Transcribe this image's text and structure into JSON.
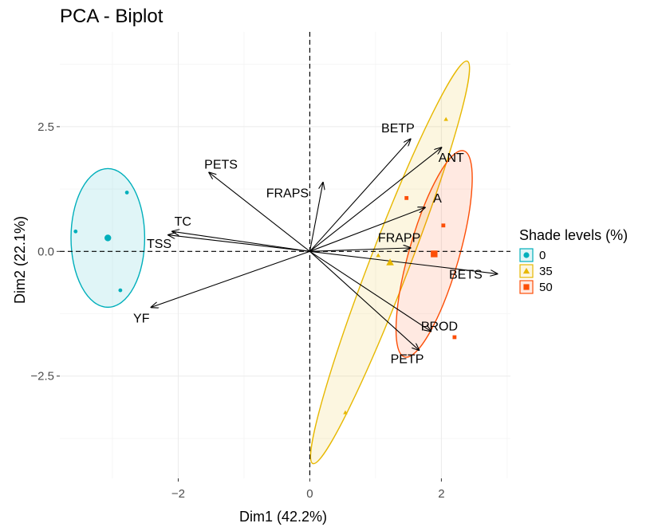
{
  "chart_data": {
    "type": "scatter",
    "title": "PCA - Biplot",
    "xlabel": "Dim1 (42.2%)",
    "ylabel": "Dim2 (22.1%)",
    "xlim": [
      -3.8,
      3.05
    ],
    "ylim": [
      -4.55,
      4.4
    ],
    "xticks": [
      -2,
      0,
      2
    ],
    "xtick_labels": [
      "−2",
      "0",
      "2"
    ],
    "yticks": [
      -2.5,
      0,
      2.5
    ],
    "ytick_labels": [
      "−2.5",
      "0.0",
      "2.5"
    ],
    "grid": true,
    "legend": {
      "title": "Shade levels (%)",
      "position": "right",
      "entries": [
        {
          "label": "0",
          "shape": "circle",
          "color": "#00AFBB"
        },
        {
          "label": "35",
          "shape": "triangle",
          "color": "#E7B800"
        },
        {
          "label": "50",
          "shape": "square",
          "color": "#FC4E07"
        }
      ]
    },
    "groups": [
      {
        "name": "0",
        "color": "#00AFBB",
        "shape": "circle",
        "points": [
          {
            "x": -2.78,
            "y": 1.18
          },
          {
            "x": -3.56,
            "y": 0.4
          },
          {
            "x": -2.88,
            "y": -0.78
          }
        ],
        "centroid": {
          "x": -3.07,
          "y": 0.27
        },
        "ellipse": {
          "cx": -3.07,
          "cy": 0.27,
          "rx": 0.56,
          "ry": 1.39,
          "angle_deg": 0
        }
      },
      {
        "name": "35",
        "color": "#E7B800",
        "shape": "triangle",
        "points": [
          {
            "x": 2.07,
            "y": 2.65
          },
          {
            "x": 1.04,
            "y": -0.08
          },
          {
            "x": 0.54,
            "y": -3.23
          }
        ],
        "centroid": {
          "x": 1.22,
          "y": -0.22
        },
        "ellipse": {
          "cx": 1.22,
          "cy": -0.22,
          "rx": 0.3,
          "ry": 4.32,
          "angle_deg": 21
        }
      },
      {
        "name": "50",
        "color": "#FC4E07",
        "shape": "square",
        "points": [
          {
            "x": 1.47,
            "y": 1.07
          },
          {
            "x": 2.03,
            "y": 0.52
          },
          {
            "x": 2.2,
            "y": -1.72
          }
        ],
        "centroid": {
          "x": 1.89,
          "y": -0.05
        },
        "ellipse": {
          "cx": 1.89,
          "cy": -0.05,
          "rx": 0.38,
          "ry": 2.15,
          "angle_deg": 16
        }
      }
    ],
    "variables": [
      {
        "name": "BETP",
        "x": 1.53,
        "y": 2.25,
        "lx": 1.34,
        "ly": 2.45
      },
      {
        "name": "ANT",
        "x": 2.0,
        "y": 2.08,
        "lx": 2.15,
        "ly": 1.86
      },
      {
        "name": "PETS",
        "x": -1.53,
        "y": 1.58,
        "lx": -1.35,
        "ly": 1.73
      },
      {
        "name": "FRAPS",
        "x": 0.2,
        "y": 1.38,
        "lx": -0.34,
        "ly": 1.15
      },
      {
        "name": "A",
        "x": 1.75,
        "y": 0.88,
        "lx": 1.94,
        "ly": 1.05
      },
      {
        "name": "TC",
        "x": -2.09,
        "y": 0.4,
        "lx": -1.93,
        "ly": 0.58
      },
      {
        "name": "TSS",
        "x": -2.15,
        "y": 0.33,
        "lx": -2.29,
        "ly": 0.14
      },
      {
        "name": "FRAPP",
        "x": 1.53,
        "y": 0.07,
        "lx": 1.36,
        "ly": 0.26
      },
      {
        "name": "BETS",
        "x": 2.85,
        "y": -0.45,
        "lx": 2.37,
        "ly": -0.48
      },
      {
        "name": "PROD",
        "x": 1.84,
        "y": -1.6,
        "lx": 1.97,
        "ly": -1.52
      },
      {
        "name": "PETP",
        "x": 1.66,
        "y": -1.98,
        "lx": 1.48,
        "ly": -2.17
      },
      {
        "name": "YF",
        "x": -2.41,
        "y": -1.12,
        "lx": -2.56,
        "ly": -1.36
      }
    ]
  }
}
